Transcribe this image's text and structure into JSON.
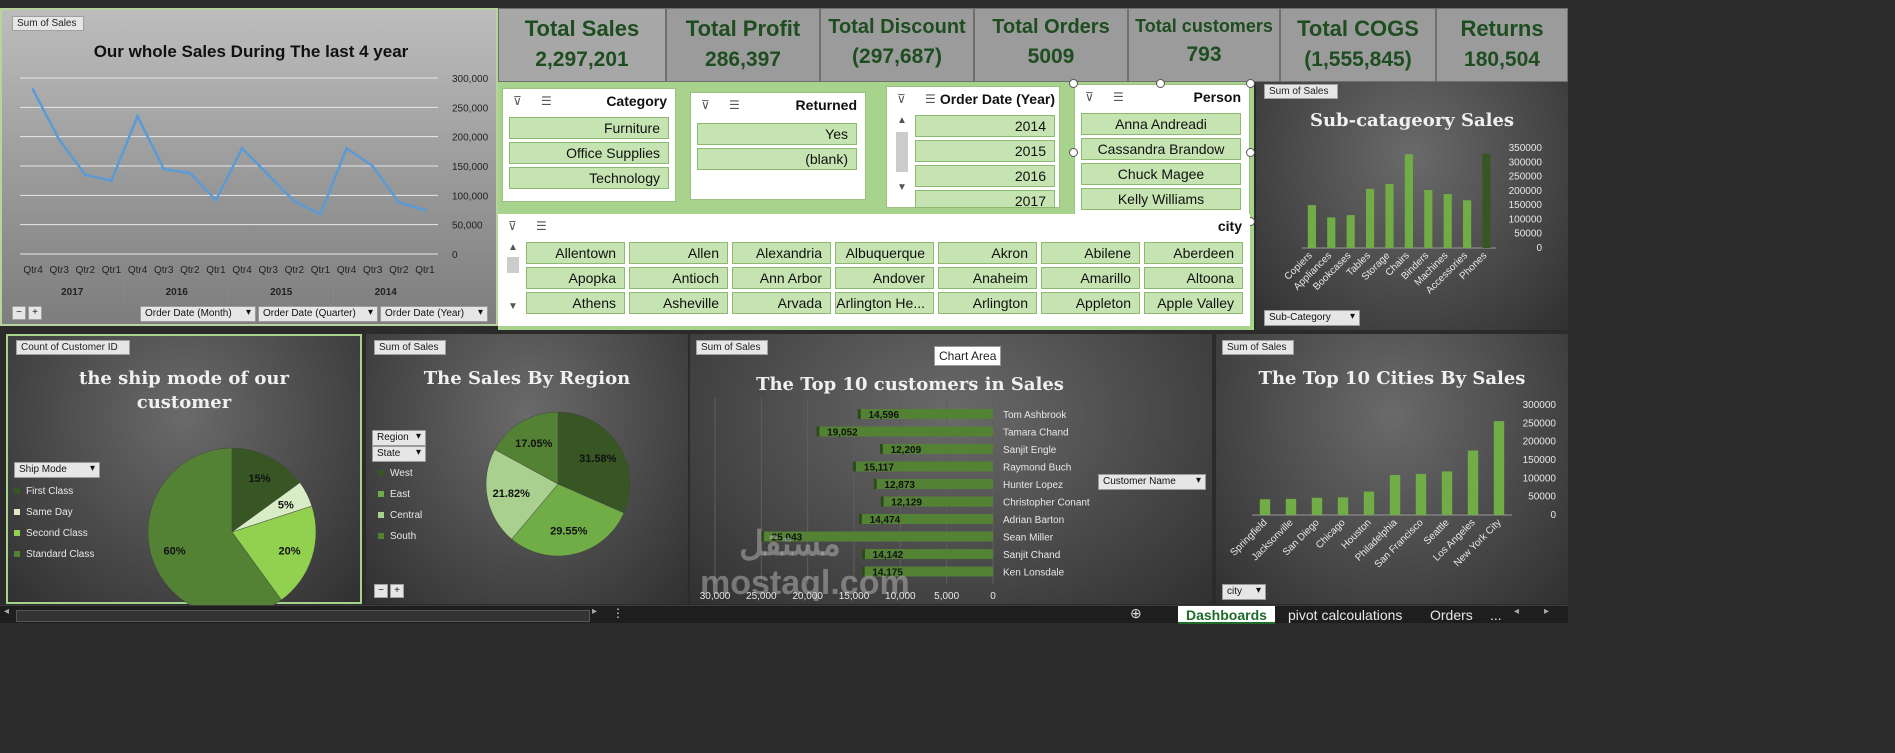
{
  "kpis": [
    {
      "title": "Total Sales",
      "value": "2,297,201"
    },
    {
      "title": "Total Profit",
      "value": "286,397"
    },
    {
      "title": "Total Discount",
      "value": "(297,687)"
    },
    {
      "title": "Total Orders",
      "value": "5009"
    },
    {
      "title": "Total customers",
      "value": "793"
    },
    {
      "title": "Total COGS",
      "value": "(1,555,845)"
    },
    {
      "title": "Returns",
      "value": "180,504"
    }
  ],
  "line_chart": {
    "field_button": "Sum of Sales",
    "title": "Our whole Sales During The last 4 year",
    "y_ticks": [
      "300,000",
      "250,000",
      "200,000",
      "150,000",
      "100,000",
      "50,000",
      "0"
    ],
    "quarters": [
      "Qtr4",
      "Qtr3",
      "Qtr2",
      "Qtr1",
      "Qtr4",
      "Qtr3",
      "Qtr2",
      "Qtr1",
      "Qtr4",
      "Qtr3",
      "Qtr2",
      "Qtr1",
      "Qtr4",
      "Qtr3",
      "Qtr2",
      "Qtr1"
    ],
    "years": [
      "2017",
      "2016",
      "2015",
      "2014"
    ],
    "filters": [
      "Order Date (Month)",
      "Order Date (Quarter)",
      "Order Date (Year)"
    ],
    "expand_controls": [
      "−",
      "+"
    ],
    "color": "#5b9bd5"
  },
  "slicers": {
    "category": {
      "title": "Category",
      "items": [
        "Furniture",
        "Office Supplies",
        "Technology"
      ]
    },
    "returned": {
      "title": "Returned",
      "items": [
        "Yes",
        "(blank)"
      ]
    },
    "order_year": {
      "title": "Order Date (Year)",
      "items": [
        "2014",
        "2015",
        "2016",
        "2017"
      ]
    },
    "person": {
      "title": "Person",
      "items": [
        "Anna Andreadi",
        "Cassandra Brandow",
        "Chuck Magee",
        "Kelly Williams"
      ]
    },
    "city": {
      "title": "city",
      "items": [
        "Allentown",
        "Allen",
        "Alexandria",
        "Albuquerque",
        "Akron",
        "Abilene",
        "Aberdeen",
        "Apopka",
        "Antioch",
        "Ann Arbor",
        "Andover",
        "Anaheim",
        "Amarillo",
        "Altoona",
        "Athens",
        "Asheville",
        "Arvada",
        "Arlington He...",
        "Arlington",
        "Appleton",
        "Apple Valley"
      ]
    }
  },
  "subcat": {
    "field_button": "Sum of Sales",
    "title": "Sub-catageory Sales",
    "filter": "Sub-Category",
    "y_ticks": [
      "350000",
      "300000",
      "250000",
      "200000",
      "150000",
      "100000",
      "50000",
      "0"
    ]
  },
  "ship_mode": {
    "field_button": "Count of Customer ID",
    "title_line1": "the ship mode of our",
    "title_line2": "customer",
    "filter": "Ship Mode",
    "labels": [
      "15%",
      "5%",
      "20%",
      "60%"
    ]
  },
  "region": {
    "field_button": "Sum of Sales",
    "title": "The Sales By Region",
    "filters": [
      "Region",
      "State"
    ],
    "labels": [
      "31.58%",
      "29.55%",
      "21.82%",
      "17.05%"
    ],
    "expand_controls": [
      "−",
      "+"
    ]
  },
  "top_customers": {
    "field_button": "Sum of Sales",
    "title": "The Top 10 customers in Sales",
    "tooltip": "Chart Area",
    "filter": "Customer Name",
    "x_ticks": [
      "30,000",
      "25,000",
      "20,000",
      "15,000",
      "10,000",
      "5,000",
      "0"
    ],
    "watermark": "مستقل mostaql.com"
  },
  "top_cities": {
    "field_button": "Sum of Sales",
    "title": "The Top 10 Cities By Sales",
    "filter": "city",
    "y_ticks": [
      "300000",
      "250000",
      "200000",
      "150000",
      "100000",
      "50000",
      "0"
    ]
  },
  "tabs": [
    "Dashboards",
    "pivot calcoulations",
    "Orders",
    "..."
  ],
  "chart_data": [
    {
      "type": "line",
      "title": "Our whole Sales During The last 4 year",
      "x": [
        "2017 Qtr4",
        "2017 Qtr3",
        "2017 Qtr2",
        "2017 Qtr1",
        "2016 Qtr4",
        "2016 Qtr3",
        "2016 Qtr2",
        "2016 Qtr1",
        "2015 Qtr4",
        "2015 Qtr3",
        "2015 Qtr2",
        "2015 Qtr1",
        "2014 Qtr4",
        "2014 Qtr3",
        "2014 Qtr2",
        "2014 Qtr1"
      ],
      "values": [
        280000,
        195000,
        135000,
        125000,
        235000,
        145000,
        138000,
        92000,
        180000,
        135000,
        90000,
        68000,
        180000,
        150000,
        88000,
        75000
      ],
      "ylim": [
        0,
        300000
      ]
    },
    {
      "type": "bar",
      "title": "Sub-catageory Sales",
      "categories": [
        "Copiers",
        "Appliances",
        "Bookcases",
        "Tables",
        "Storage",
        "Chairs",
        "Binders",
        "Machines",
        "Accessories",
        "Phones"
      ],
      "values": [
        150000,
        107000,
        115000,
        207000,
        224000,
        328000,
        203000,
        189000,
        167000,
        330000
      ],
      "ylim": [
        0,
        350000
      ]
    },
    {
      "type": "pie",
      "title": "the ship mode of our customer",
      "categories": [
        "First Class",
        "Same Day",
        "Second Class",
        "Standard Class"
      ],
      "values": [
        15,
        5,
        20,
        60
      ],
      "colors": [
        "#375623",
        "#d8ecc6",
        "#92d050",
        "#548235"
      ]
    },
    {
      "type": "pie",
      "title": "The Sales By Region",
      "categories": [
        "West",
        "East",
        "Central",
        "South"
      ],
      "values": [
        31.58,
        29.55,
        21.82,
        17.05
      ],
      "colors": [
        "#375623",
        "#70ad47",
        "#a9d08e",
        "#548235"
      ]
    },
    {
      "type": "bar",
      "title": "The Top 10 customers in Sales",
      "categories": [
        "Tom Ashbrook",
        "Tamara Chand",
        "Sanjit Engle",
        "Raymond Buch",
        "Hunter Lopez",
        "Christopher Conant",
        "Adrian Barton",
        "Sean Miller",
        "Sanjit Chand",
        "Ken Lonsdale"
      ],
      "values": [
        14596,
        19052,
        12209,
        15117,
        12873,
        12129,
        14474,
        25043,
        14142,
        14175
      ],
      "value_labels": [
        "14,596",
        "19,052",
        "12,209",
        "15,117",
        "12,873",
        "12,129",
        "14,474",
        "25,043",
        "14,142",
        "14,175"
      ],
      "xlim": [
        30000,
        0
      ]
    },
    {
      "type": "bar",
      "title": "The Top 10 Cities By Sales",
      "categories": [
        "Springfield",
        "Jacksonville",
        "San Diego",
        "Chicago",
        "Houston",
        "Philadelphia",
        "San Francisco",
        "Seattle",
        "Los Angeles",
        "New York City"
      ],
      "values": [
        43000,
        44000,
        47000,
        48000,
        64000,
        109000,
        112000,
        119000,
        176000,
        256000
      ],
      "ylim": [
        0,
        300000
      ]
    }
  ]
}
